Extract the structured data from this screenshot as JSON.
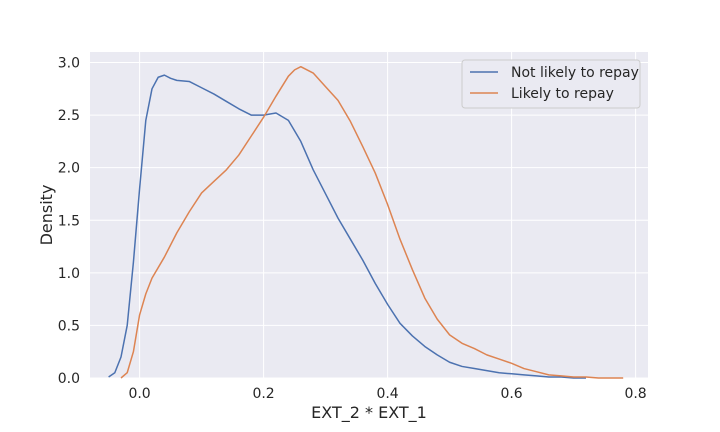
{
  "chart_data": {
    "type": "line",
    "title": "",
    "xlabel": "EXT_2 * EXT_1",
    "ylabel": "Density",
    "xlim": [
      -0.08,
      0.82
    ],
    "ylim": [
      0,
      3.1
    ],
    "xticks": [
      0.0,
      0.2,
      0.4,
      0.6,
      0.8
    ],
    "xtick_labels": [
      "0.0",
      "0.2",
      "0.4",
      "0.6",
      "0.8"
    ],
    "yticks": [
      0.0,
      0.5,
      1.0,
      1.5,
      2.0,
      2.5,
      3.0
    ],
    "ytick_labels": [
      "0.0",
      "0.5",
      "1.0",
      "1.5",
      "2.0",
      "2.5",
      "3.0"
    ],
    "grid": true,
    "legend_position": "top-right",
    "background": "#eaeaf2",
    "series": [
      {
        "name": "Not likely to repay",
        "color": "#4c72b0",
        "x": [
          -0.05,
          -0.04,
          -0.03,
          -0.02,
          -0.01,
          0.0,
          0.01,
          0.02,
          0.03,
          0.04,
          0.05,
          0.06,
          0.08,
          0.1,
          0.12,
          0.14,
          0.16,
          0.18,
          0.2,
          0.22,
          0.24,
          0.26,
          0.28,
          0.3,
          0.32,
          0.34,
          0.36,
          0.38,
          0.4,
          0.42,
          0.44,
          0.46,
          0.48,
          0.5,
          0.52,
          0.54,
          0.56,
          0.58,
          0.6,
          0.62,
          0.64,
          0.66,
          0.68,
          0.7,
          0.72
        ],
        "y": [
          0.01,
          0.05,
          0.2,
          0.5,
          1.1,
          1.8,
          2.45,
          2.75,
          2.86,
          2.88,
          2.85,
          2.83,
          2.82,
          2.76,
          2.7,
          2.63,
          2.56,
          2.5,
          2.5,
          2.52,
          2.45,
          2.25,
          1.98,
          1.75,
          1.52,
          1.32,
          1.12,
          0.9,
          0.7,
          0.52,
          0.4,
          0.3,
          0.22,
          0.15,
          0.11,
          0.09,
          0.07,
          0.05,
          0.04,
          0.03,
          0.02,
          0.01,
          0.01,
          0.0,
          0.0
        ]
      },
      {
        "name": "Likely to repay",
        "color": "#dd8452",
        "x": [
          -0.03,
          -0.02,
          -0.01,
          0.0,
          0.01,
          0.02,
          0.04,
          0.06,
          0.08,
          0.1,
          0.12,
          0.14,
          0.16,
          0.18,
          0.2,
          0.22,
          0.24,
          0.25,
          0.26,
          0.28,
          0.3,
          0.32,
          0.34,
          0.36,
          0.38,
          0.4,
          0.42,
          0.44,
          0.46,
          0.48,
          0.5,
          0.52,
          0.54,
          0.56,
          0.58,
          0.6,
          0.62,
          0.64,
          0.66,
          0.68,
          0.7,
          0.72,
          0.74,
          0.76,
          0.78
        ],
        "y": [
          0.0,
          0.05,
          0.25,
          0.6,
          0.8,
          0.95,
          1.15,
          1.38,
          1.58,
          1.76,
          1.87,
          1.98,
          2.12,
          2.3,
          2.48,
          2.68,
          2.87,
          2.93,
          2.96,
          2.9,
          2.77,
          2.64,
          2.44,
          2.2,
          1.95,
          1.65,
          1.32,
          1.03,
          0.76,
          0.56,
          0.41,
          0.33,
          0.28,
          0.22,
          0.18,
          0.14,
          0.09,
          0.06,
          0.03,
          0.02,
          0.01,
          0.01,
          0.0,
          0.0,
          0.0
        ]
      }
    ]
  }
}
